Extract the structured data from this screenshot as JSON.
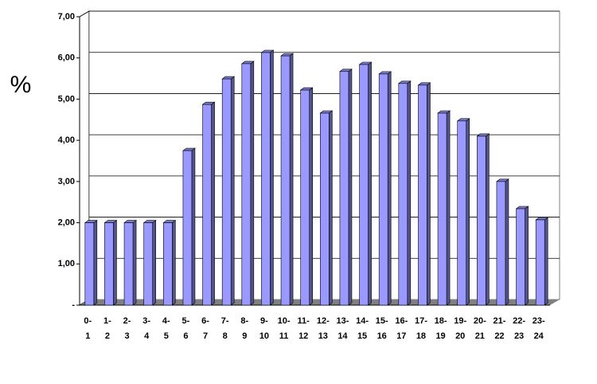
{
  "chart_data": {
    "type": "bar",
    "y_label": "%",
    "categories": [
      [
        "0-",
        "1"
      ],
      [
        "1-",
        "2"
      ],
      [
        "2-",
        "3"
      ],
      [
        "3-",
        "4"
      ],
      [
        "4-",
        "5"
      ],
      [
        "5-",
        "6"
      ],
      [
        "6-",
        "7"
      ],
      [
        "7-",
        "8"
      ],
      [
        "8-",
        "9"
      ],
      [
        "9-",
        "10"
      ],
      [
        "10-",
        "11"
      ],
      [
        "11-",
        "12"
      ],
      [
        "12-",
        "13"
      ],
      [
        "13-",
        "14"
      ],
      [
        "14-",
        "15"
      ],
      [
        "15-",
        "16"
      ],
      [
        "16-",
        "17"
      ],
      [
        "17-",
        "18"
      ],
      [
        "18-",
        "19"
      ],
      [
        "19-",
        "20"
      ],
      [
        "20-",
        "21"
      ],
      [
        "21-",
        "22"
      ],
      [
        "22-",
        "23"
      ],
      [
        "23-",
        "24"
      ]
    ],
    "values": [
      2.0,
      2.0,
      2.0,
      2.0,
      2.0,
      3.75,
      4.87,
      5.49,
      5.86,
      6.13,
      6.05,
      5.22,
      4.66,
      5.67,
      5.84,
      5.61,
      5.38,
      5.34,
      4.66,
      4.47,
      4.1,
      3.0,
      2.34,
      2.07
    ],
    "color": "#9999ff",
    "ylim": [
      0,
      7
    ],
    "yticks": [
      {
        "value": 0,
        "label": "-"
      },
      {
        "value": 1,
        "label": "1,00"
      },
      {
        "value": 2,
        "label": "2,00"
      },
      {
        "value": 3,
        "label": "3,00"
      },
      {
        "value": 4,
        "label": "4,00"
      },
      {
        "value": 5,
        "label": "5,00"
      },
      {
        "value": 6,
        "label": "6,00"
      },
      {
        "value": 7,
        "label": "7,00"
      }
    ],
    "grid": true
  }
}
